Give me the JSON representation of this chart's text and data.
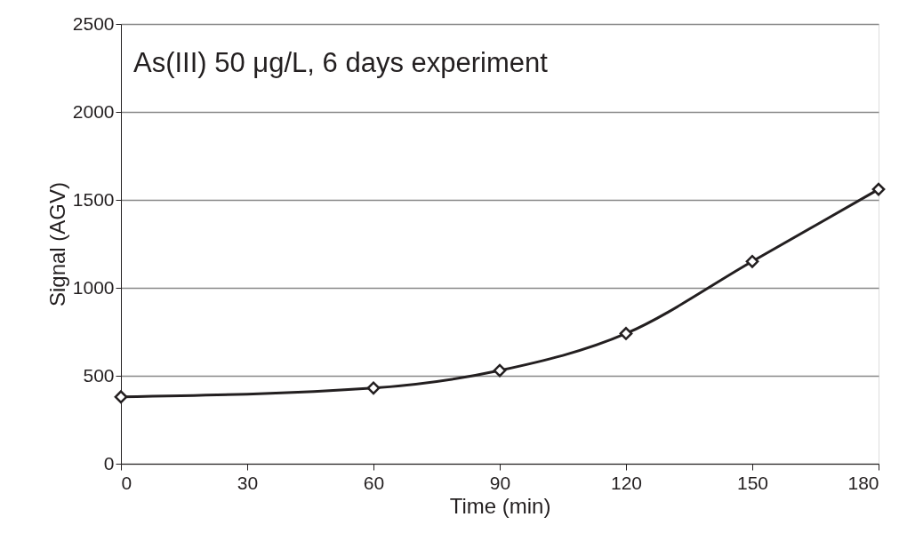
{
  "chart_data": {
    "type": "line",
    "title": "As(III) 50 μg/L, 6 days experiment",
    "xlabel": "Time (min)",
    "ylabel": "Signal (AGV)",
    "x": [
      0,
      60,
      90,
      120,
      150,
      180
    ],
    "series": [
      {
        "color": "#231f20",
        "values": [
          380,
          430,
          530,
          740,
          1150,
          1560
        ]
      }
    ],
    "xlim": [
      0,
      180
    ],
    "xticks": [
      0,
      30,
      60,
      90,
      120,
      150,
      180
    ],
    "ylim": [
      0,
      2500
    ],
    "yticks": [
      0,
      500,
      1000,
      1500,
      2000,
      2500
    ],
    "grid": "y",
    "marker": "diamond",
    "line_style": "solid"
  }
}
